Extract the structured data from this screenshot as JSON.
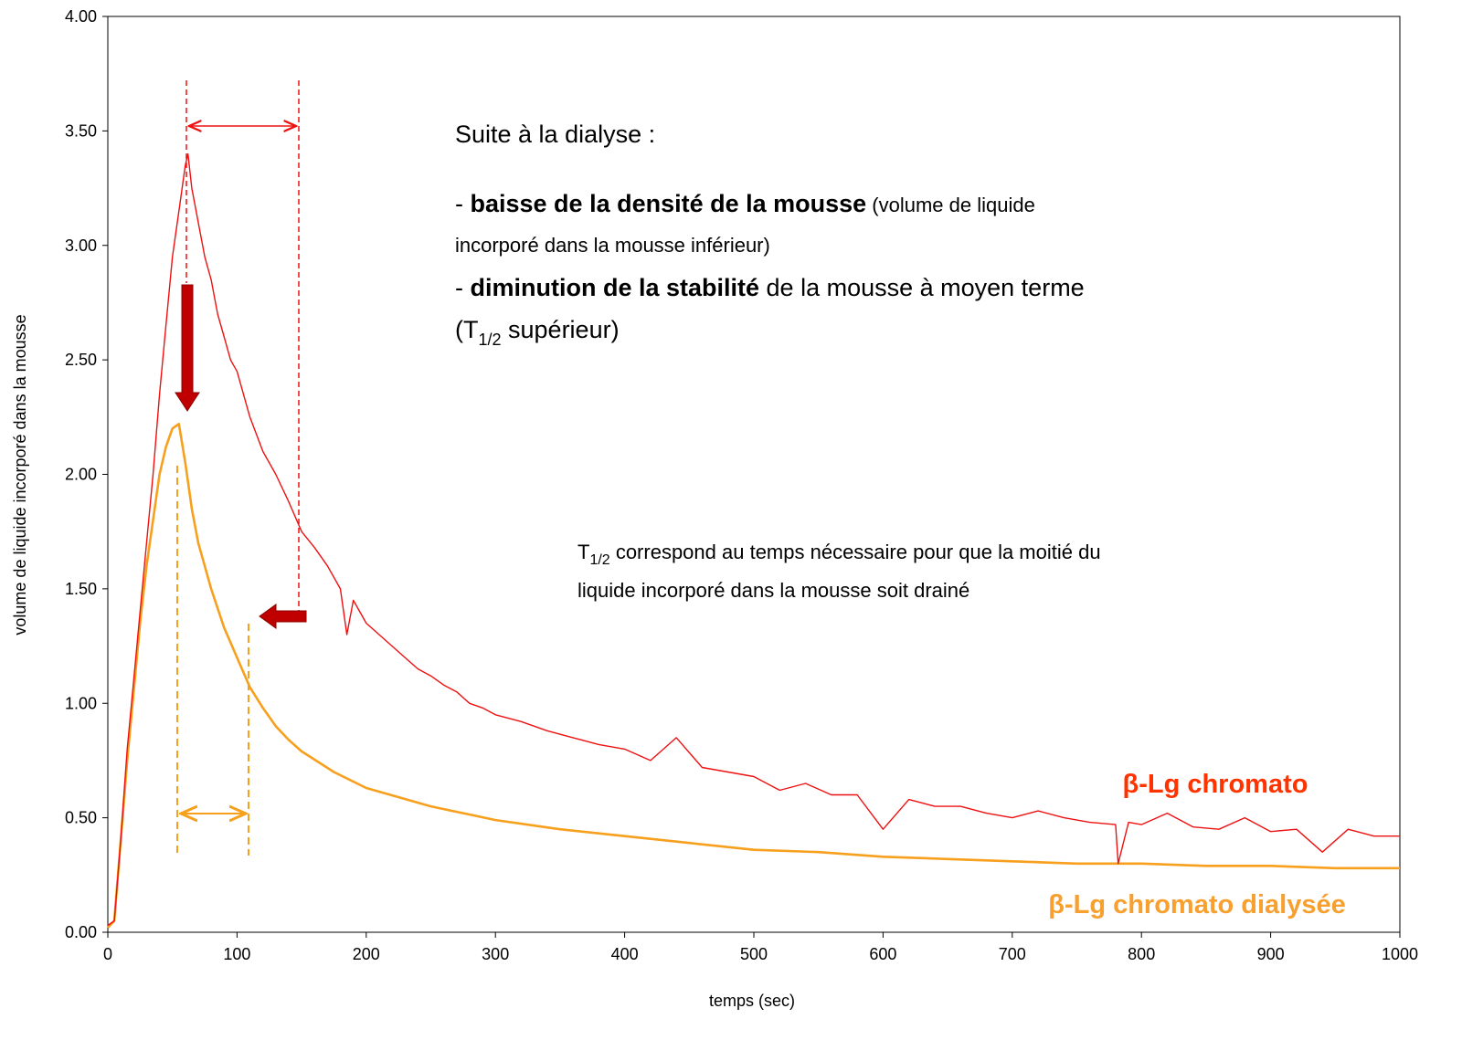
{
  "chart_data": {
    "type": "line",
    "x_label": "temps (sec)",
    "y_label": "volume de liquide incorporé dans la mousse",
    "xlim": [
      0,
      1000
    ],
    "xticks": [
      0,
      100,
      200,
      300,
      400,
      500,
      600,
      700,
      800,
      900,
      1000
    ],
    "ylim": [
      0,
      4
    ],
    "yticks": [
      {
        "value": 0,
        "label": "0.00"
      },
      {
        "value": 0.5,
        "label": "0.50"
      },
      {
        "value": 1,
        "label": "1.00"
      },
      {
        "value": 1.5,
        "label": "1.50"
      },
      {
        "value": 2,
        "label": "2.00"
      },
      {
        "value": 2.5,
        "label": "2.50"
      },
      {
        "value": 3,
        "label": "3.00"
      },
      {
        "value": 3.5,
        "label": "3.50"
      },
      {
        "value": 4,
        "label": "4.00"
      }
    ],
    "grid": false,
    "series": [
      {
        "name": "β-Lg chromato",
        "color": "#ee1111",
        "label_color": "#ff3300",
        "x": [
          0,
          5,
          10,
          15,
          20,
          25,
          30,
          35,
          40,
          45,
          50,
          55,
          60,
          62,
          65,
          70,
          75,
          80,
          85,
          90,
          95,
          100,
          110,
          120,
          130,
          140,
          150,
          160,
          170,
          180,
          185,
          190,
          200,
          210,
          220,
          230,
          240,
          250,
          260,
          270,
          280,
          290,
          300,
          320,
          340,
          360,
          380,
          400,
          420,
          440,
          460,
          480,
          500,
          520,
          540,
          560,
          580,
          600,
          620,
          640,
          660,
          680,
          700,
          720,
          740,
          760,
          780,
          782,
          790,
          800,
          820,
          840,
          860,
          880,
          900,
          920,
          940,
          960,
          980,
          1000
        ],
        "values": [
          0.03,
          0.05,
          0.4,
          0.8,
          1.1,
          1.4,
          1.7,
          2.0,
          2.35,
          2.65,
          2.95,
          3.15,
          3.35,
          3.4,
          3.25,
          3.1,
          2.95,
          2.85,
          2.7,
          2.6,
          2.5,
          2.45,
          2.25,
          2.1,
          2.0,
          1.88,
          1.75,
          1.68,
          1.6,
          1.5,
          1.3,
          1.45,
          1.35,
          1.3,
          1.25,
          1.2,
          1.15,
          1.12,
          1.08,
          1.05,
          1.0,
          0.98,
          0.95,
          0.92,
          0.88,
          0.85,
          0.82,
          0.8,
          0.75,
          0.85,
          0.72,
          0.7,
          0.68,
          0.62,
          0.65,
          0.6,
          0.6,
          0.45,
          0.58,
          0.55,
          0.55,
          0.52,
          0.5,
          0.53,
          0.5,
          0.48,
          0.47,
          0.3,
          0.48,
          0.47,
          0.52,
          0.46,
          0.45,
          0.5,
          0.44,
          0.45,
          0.35,
          0.45,
          0.42,
          0.42
        ]
      },
      {
        "name": "β-Lg chromato dialysée",
        "color": "#f7a01e",
        "label_color": "#f7a030",
        "x": [
          0,
          5,
          10,
          15,
          20,
          25,
          30,
          35,
          40,
          45,
          50,
          55,
          60,
          65,
          70,
          80,
          90,
          100,
          110,
          120,
          130,
          140,
          150,
          175,
          200,
          250,
          300,
          350,
          400,
          450,
          500,
          550,
          600,
          650,
          700,
          750,
          800,
          850,
          900,
          950,
          1000
        ],
        "values": [
          0.02,
          0.05,
          0.4,
          0.75,
          1.05,
          1.35,
          1.6,
          1.8,
          2.0,
          2.12,
          2.2,
          2.22,
          2.05,
          1.85,
          1.7,
          1.5,
          1.33,
          1.2,
          1.07,
          0.98,
          0.9,
          0.84,
          0.79,
          0.7,
          0.63,
          0.55,
          0.49,
          0.45,
          0.42,
          0.39,
          0.36,
          0.35,
          0.33,
          0.32,
          0.31,
          0.3,
          0.3,
          0.29,
          0.29,
          0.28,
          0.28
        ]
      }
    ],
    "annotations": [
      {
        "parts": [
          "Suite à la dialyse :"
        ]
      },
      {
        "parts": [
          "- ",
          "baisse de la densité de la mousse",
          " (volume de liquide"
        ]
      },
      {
        "parts": [
          "incorporé dans la mousse inférieur)"
        ]
      },
      {
        "parts": [
          "- ",
          "diminution de la stabilité",
          " de la mousse à moyen terme"
        ]
      },
      {
        "parts": [
          "(T",
          "1/2",
          " supérieur)"
        ]
      },
      {
        "parts": [
          "T",
          "1/2",
          " correspond au temps nécessaire pour que la moitié du"
        ]
      },
      {
        "parts": [
          "liquide incorporé dans la mousse soit drainé"
        ]
      }
    ]
  }
}
